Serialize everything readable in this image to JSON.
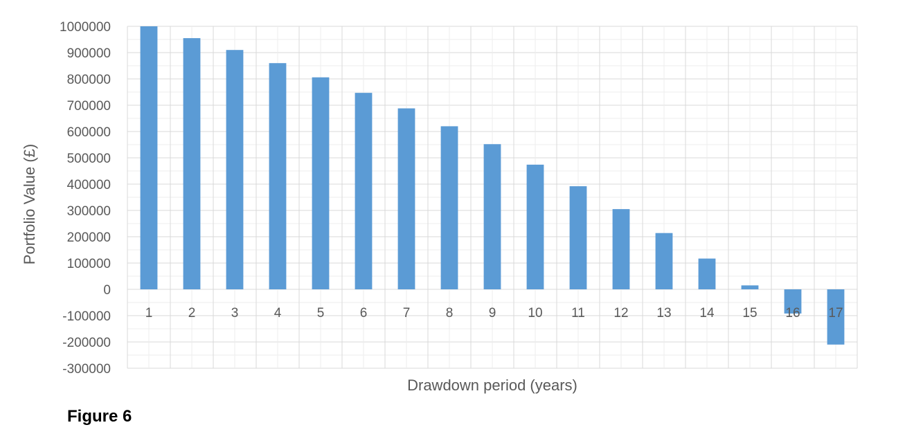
{
  "chart_data": {
    "type": "bar",
    "title": "",
    "xlabel": "Drawdown period (years)",
    "ylabel": "Portfolio Value (£)",
    "categories": [
      "1",
      "2",
      "3",
      "4",
      "5",
      "6",
      "7",
      "8",
      "9",
      "10",
      "11",
      "12",
      "13",
      "14",
      "15",
      "16",
      "17"
    ],
    "values": [
      1000000,
      955000,
      910000,
      860000,
      806000,
      747000,
      688000,
      620000,
      552000,
      474000,
      392000,
      305000,
      214000,
      117000,
      15000,
      -92000,
      -210000
    ],
    "ylim": [
      -300000,
      1000000
    ],
    "yticks": [
      "1000000",
      "900000",
      "800000",
      "700000",
      "600000",
      "500000",
      "400000",
      "300000",
      "200000",
      "100000",
      "0",
      "-100000",
      "-200000",
      "-300000"
    ],
    "grid": true,
    "bar_color": "#5B9BD5",
    "grid_color": "#D9D9D9",
    "text_color": "#595959"
  },
  "caption": "Figure 6"
}
